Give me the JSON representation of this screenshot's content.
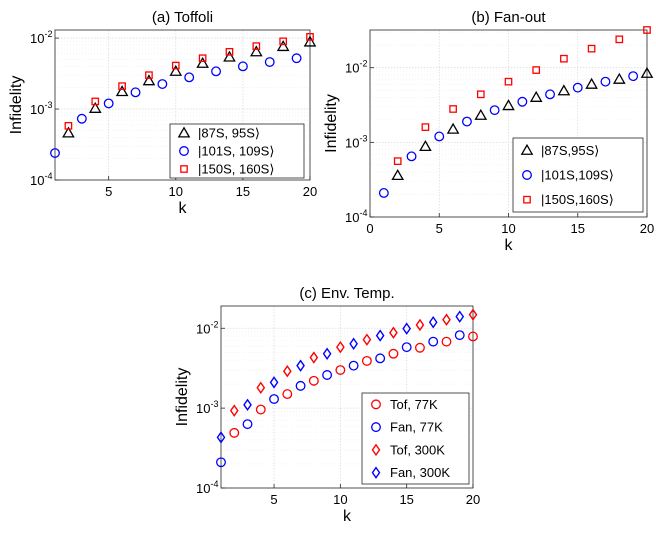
{
  "chart_data": [
    {
      "type": "scatter",
      "title": "(a) Toffoli",
      "xlabel": "k",
      "ylabel": "Infidelity",
      "xlim": [
        1,
        20
      ],
      "ylim": [
        0.0001,
        0.013
      ],
      "yscale": "log",
      "xticks": [
        "5",
        "10",
        "15",
        "20"
      ],
      "yticks": [
        {
          "base": "10",
          "exp": "-4"
        },
        {
          "base": "10",
          "exp": "-3"
        },
        {
          "base": "10",
          "exp": "-2"
        }
      ],
      "grid": true,
      "legend_position": "lower-right",
      "series": [
        {
          "name": "|87S, 95S⟩",
          "marker": "triangle",
          "color": "#000000",
          "x": [
            2,
            4,
            6,
            8,
            10,
            12,
            14,
            16,
            18,
            20
          ],
          "y": [
            0.00046,
            0.00102,
            0.00176,
            0.0025,
            0.0034,
            0.0044,
            0.0054,
            0.0064,
            0.0076,
            0.0088
          ]
        },
        {
          "name": "|101S, 109S⟩",
          "marker": "circle",
          "color": "#0000ff",
          "x": [
            1,
            3,
            5,
            7,
            9,
            11,
            13,
            15,
            17,
            19
          ],
          "y": [
            0.00024,
            0.00073,
            0.0012,
            0.00172,
            0.00225,
            0.0028,
            0.0034,
            0.004,
            0.0046,
            0.0052
          ]
        },
        {
          "name": "|150S, 160S⟩",
          "marker": "square",
          "color": "#ff0000",
          "x": [
            2,
            4,
            6,
            8,
            10,
            12,
            14,
            16,
            18,
            20
          ],
          "y": [
            0.00058,
            0.00128,
            0.0021,
            0.003,
            0.0041,
            0.0052,
            0.0064,
            0.0077,
            0.009,
            0.0104
          ]
        }
      ]
    },
    {
      "type": "scatter",
      "title": "(b) Fan-out",
      "xlabel": "k",
      "ylabel": "Infidelity",
      "xlim": [
        0,
        20
      ],
      "ylim": [
        0.0001,
        0.032
      ],
      "yscale": "log",
      "xticks": [
        "0",
        "5",
        "10",
        "15",
        "20"
      ],
      "yticks": [
        {
          "base": "10",
          "exp": "-4"
        },
        {
          "base": "10",
          "exp": "-3"
        },
        {
          "base": "10",
          "exp": "-2"
        }
      ],
      "grid": true,
      "legend_position": "lower-right",
      "series": [
        {
          "name": "|87S,95S⟩",
          "marker": "triangle",
          "color": "#000000",
          "x": [
            2,
            4,
            6,
            8,
            10,
            12,
            14,
            16,
            18,
            20
          ],
          "y": [
            0.00036,
            0.00088,
            0.0015,
            0.0023,
            0.0031,
            0.004,
            0.0049,
            0.006,
            0.007,
            0.0084
          ]
        },
        {
          "name": "|101S,109S⟩",
          "marker": "circle",
          "color": "#0000ff",
          "x": [
            1,
            3,
            5,
            7,
            9,
            11,
            13,
            15,
            17,
            19
          ],
          "y": [
            0.00021,
            0.00065,
            0.0012,
            0.0019,
            0.0027,
            0.0035,
            0.0044,
            0.0054,
            0.0065,
            0.0077
          ]
        },
        {
          "name": "|150S,160S⟩",
          "marker": "square",
          "color": "#ff0000",
          "x": [
            2,
            4,
            6,
            8,
            10,
            12,
            14,
            16,
            18,
            20
          ],
          "y": [
            0.00056,
            0.0016,
            0.0028,
            0.0044,
            0.0065,
            0.0093,
            0.0132,
            0.018,
            0.024,
            0.032
          ]
        }
      ]
    },
    {
      "type": "scatter",
      "title": "(c) Env. Temp.",
      "xlabel": "k",
      "ylabel": "Infidelity",
      "xlim": [
        1,
        20
      ],
      "ylim": [
        0.0001,
        0.019
      ],
      "yscale": "log",
      "xticks": [
        "5",
        "10",
        "15",
        "20"
      ],
      "yticks": [
        {
          "base": "10",
          "exp": "-4"
        },
        {
          "base": "10",
          "exp": "-3"
        },
        {
          "base": "10",
          "exp": "-2"
        }
      ],
      "grid": true,
      "legend_position": "lower-right",
      "series": [
        {
          "name": "Tof, 77K",
          "marker": "circle",
          "color": "#ff0000",
          "x": [
            2,
            4,
            6,
            8,
            10,
            12,
            14,
            16,
            18,
            20
          ],
          "y": [
            0.00049,
            0.00096,
            0.0015,
            0.0022,
            0.003,
            0.0039,
            0.0048,
            0.0057,
            0.0068,
            0.0079
          ]
        },
        {
          "name": "Fan, 77K",
          "marker": "circle",
          "color": "#0000ff",
          "x": [
            1,
            3,
            5,
            7,
            9,
            11,
            13,
            15,
            17,
            19
          ],
          "y": [
            0.00021,
            0.00063,
            0.0013,
            0.0019,
            0.0026,
            0.0034,
            0.0042,
            0.0058,
            0.0068,
            0.0082
          ]
        },
        {
          "name": "Tof, 300K",
          "marker": "diamond",
          "color": "#ff0000",
          "x": [
            2,
            4,
            6,
            8,
            10,
            12,
            14,
            16,
            18,
            20
          ],
          "y": [
            0.00093,
            0.0018,
            0.0029,
            0.0043,
            0.0058,
            0.0072,
            0.0088,
            0.011,
            0.0128,
            0.0148
          ]
        },
        {
          "name": "Fan, 300K",
          "marker": "diamond",
          "color": "#0000ff",
          "x": [
            1,
            3,
            5,
            7,
            9,
            11,
            13,
            15,
            17,
            19
          ],
          "y": [
            0.00043,
            0.0011,
            0.0021,
            0.0034,
            0.0048,
            0.0064,
            0.0081,
            0.0099,
            0.0119,
            0.014
          ]
        }
      ]
    }
  ]
}
